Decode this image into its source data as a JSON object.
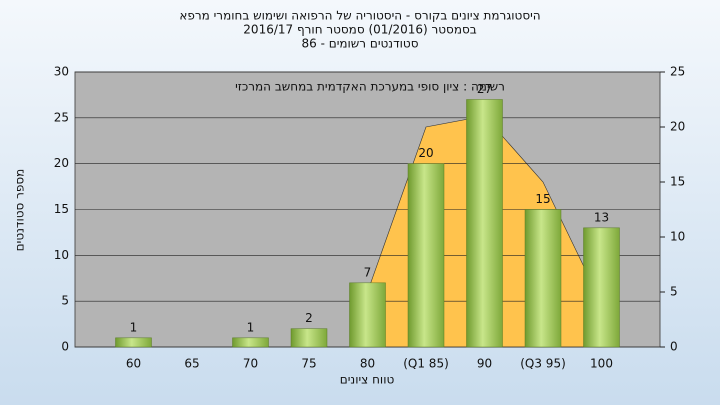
{
  "chart_data": {
    "type": "bar",
    "title": "היסטוגרמת ציונים בקורס - היסטוריה של הרפואה ושימוש בחומרי מרפא",
    "subtitle": "בסמסטר (01/2016) סמסטר חורף 2016/17",
    "subtitle2": "סטודנטים רשומים - 86",
    "annotation": "רשימה : ציון סופי במערכת האקדמית במחשב המרכזי",
    "x_label": "טווח ציונים",
    "y_label": "מספר סטודנטים",
    "categories": [
      "60",
      "65",
      "70",
      "75",
      "80",
      "(Q1 85)",
      "90",
      "(Q3 95)",
      "100"
    ],
    "values": [
      1,
      null,
      1,
      2,
      7,
      20,
      27,
      15,
      13
    ],
    "color": "#9cc45a",
    "area": {
      "axis": "y2",
      "color": "#ffc34d",
      "values": [
        null,
        null,
        null,
        null,
        5,
        20,
        21,
        15,
        4
      ]
    },
    "ylim": [
      0,
      30
    ],
    "yticks": [
      0,
      5,
      10,
      15,
      20,
      25,
      30
    ],
    "y2lim": [
      0,
      25
    ],
    "y2ticks": [
      0,
      5,
      10,
      15,
      20,
      25
    ],
    "grid": true
  }
}
